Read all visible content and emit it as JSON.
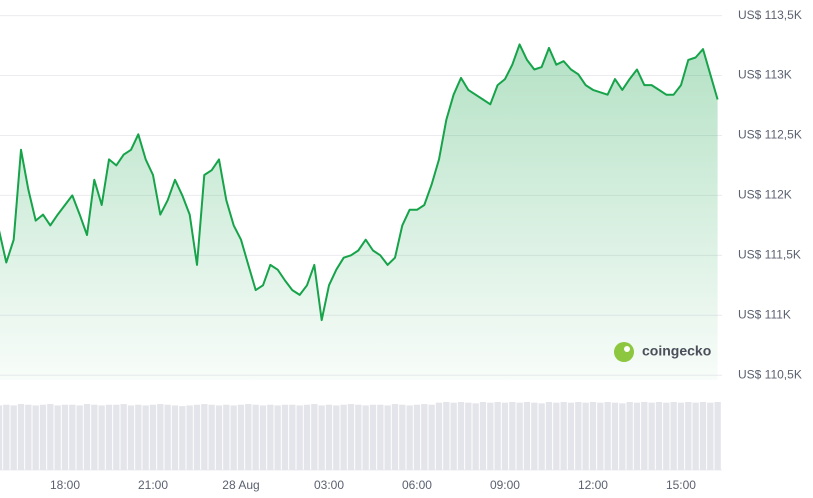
{
  "chart_data": {
    "type": "area",
    "color": "#16a34a",
    "categories": [
      null,
      null,
      null,
      null,
      null,
      null,
      null,
      null,
      null,
      "18:00",
      null,
      null,
      null,
      null,
      null,
      null,
      null,
      null,
      null,
      null,
      null,
      "21:00",
      null,
      null,
      null,
      null,
      null,
      null,
      null,
      null,
      null,
      null,
      null,
      "28 Aug",
      null,
      null,
      null,
      null,
      null,
      null,
      null,
      null,
      null,
      null,
      null,
      "03:00",
      null,
      null,
      null,
      null,
      null,
      null,
      null,
      null,
      null,
      null,
      null,
      "06:00",
      null,
      null,
      null,
      null,
      null,
      null,
      null,
      null,
      null,
      null,
      null,
      "09:00",
      null,
      null,
      null,
      null,
      null,
      null,
      null,
      null,
      null,
      null,
      null,
      "12:00",
      null,
      null,
      null,
      null,
      null,
      null,
      null,
      null,
      null,
      null,
      null,
      "15:00",
      null,
      null,
      null,
      null,
      null
    ],
    "values": [
      111710,
      111440,
      111630,
      112380,
      112050,
      111790,
      111840,
      111750,
      111840,
      111920,
      112000,
      111840,
      111670,
      112130,
      111920,
      112300,
      112250,
      112340,
      112380,
      112510,
      112300,
      112170,
      111840,
      111960,
      112130,
      112000,
      111840,
      111420,
      112170,
      112210,
      112300,
      111960,
      111750,
      111630,
      111420,
      111210,
      111250,
      111420,
      111380,
      111290,
      111210,
      111170,
      111250,
      111420,
      110960,
      111250,
      111380,
      111480,
      111500,
      111540,
      111630,
      111540,
      111500,
      111420,
      111480,
      111750,
      111880,
      111880,
      111920,
      112090,
      112300,
      112630,
      112840,
      112980,
      112880,
      112840,
      112800,
      112760,
      112920,
      112970,
      113090,
      113260,
      113130,
      113050,
      113070,
      113230,
      113090,
      113120,
      113050,
      113010,
      112920,
      112880,
      112860,
      112840,
      112970,
      112880,
      112970,
      113050,
      112920,
      112920,
      112880,
      112840,
      112840,
      112920,
      113130,
      113150,
      113220,
      113010,
      112800
    ],
    "volume": [
      95,
      96,
      95,
      97,
      96,
      95,
      96,
      97,
      95,
      96,
      96,
      95,
      97,
      96,
      95,
      96,
      96,
      97,
      95,
      96,
      95,
      96,
      97,
      96,
      95,
      94,
      95,
      96,
      97,
      96,
      95,
      96,
      95,
      96,
      97,
      96,
      95,
      96,
      95,
      96,
      96,
      95,
      96,
      97,
      95,
      96,
      95,
      96,
      97,
      96,
      95,
      96,
      96,
      95,
      97,
      96,
      95,
      96,
      97,
      96,
      99,
      100,
      99,
      100,
      99,
      98,
      100,
      99,
      100,
      99,
      100,
      99,
      100,
      99,
      98,
      100,
      99,
      100,
      99,
      100,
      99,
      100,
      99,
      100,
      99,
      98,
      100,
      99,
      100,
      99,
      100,
      99,
      100,
      99,
      100,
      99,
      100,
      99,
      100
    ],
    "ylim": [
      110460,
      113630
    ],
    "yticks": [
      {
        "value": 110500,
        "label": "US$ 110,5K"
      },
      {
        "value": 111000,
        "label": "US$ 111K"
      },
      {
        "value": 111500,
        "label": "US$ 111,5K"
      },
      {
        "value": 112000,
        "label": "US$ 112K"
      },
      {
        "value": 112500,
        "label": "US$ 112,5K"
      },
      {
        "value": 113000,
        "label": "US$ 113K"
      },
      {
        "value": 113500,
        "label": "US$ 113,5K"
      }
    ],
    "grid": true,
    "watermark": "coingecko"
  }
}
